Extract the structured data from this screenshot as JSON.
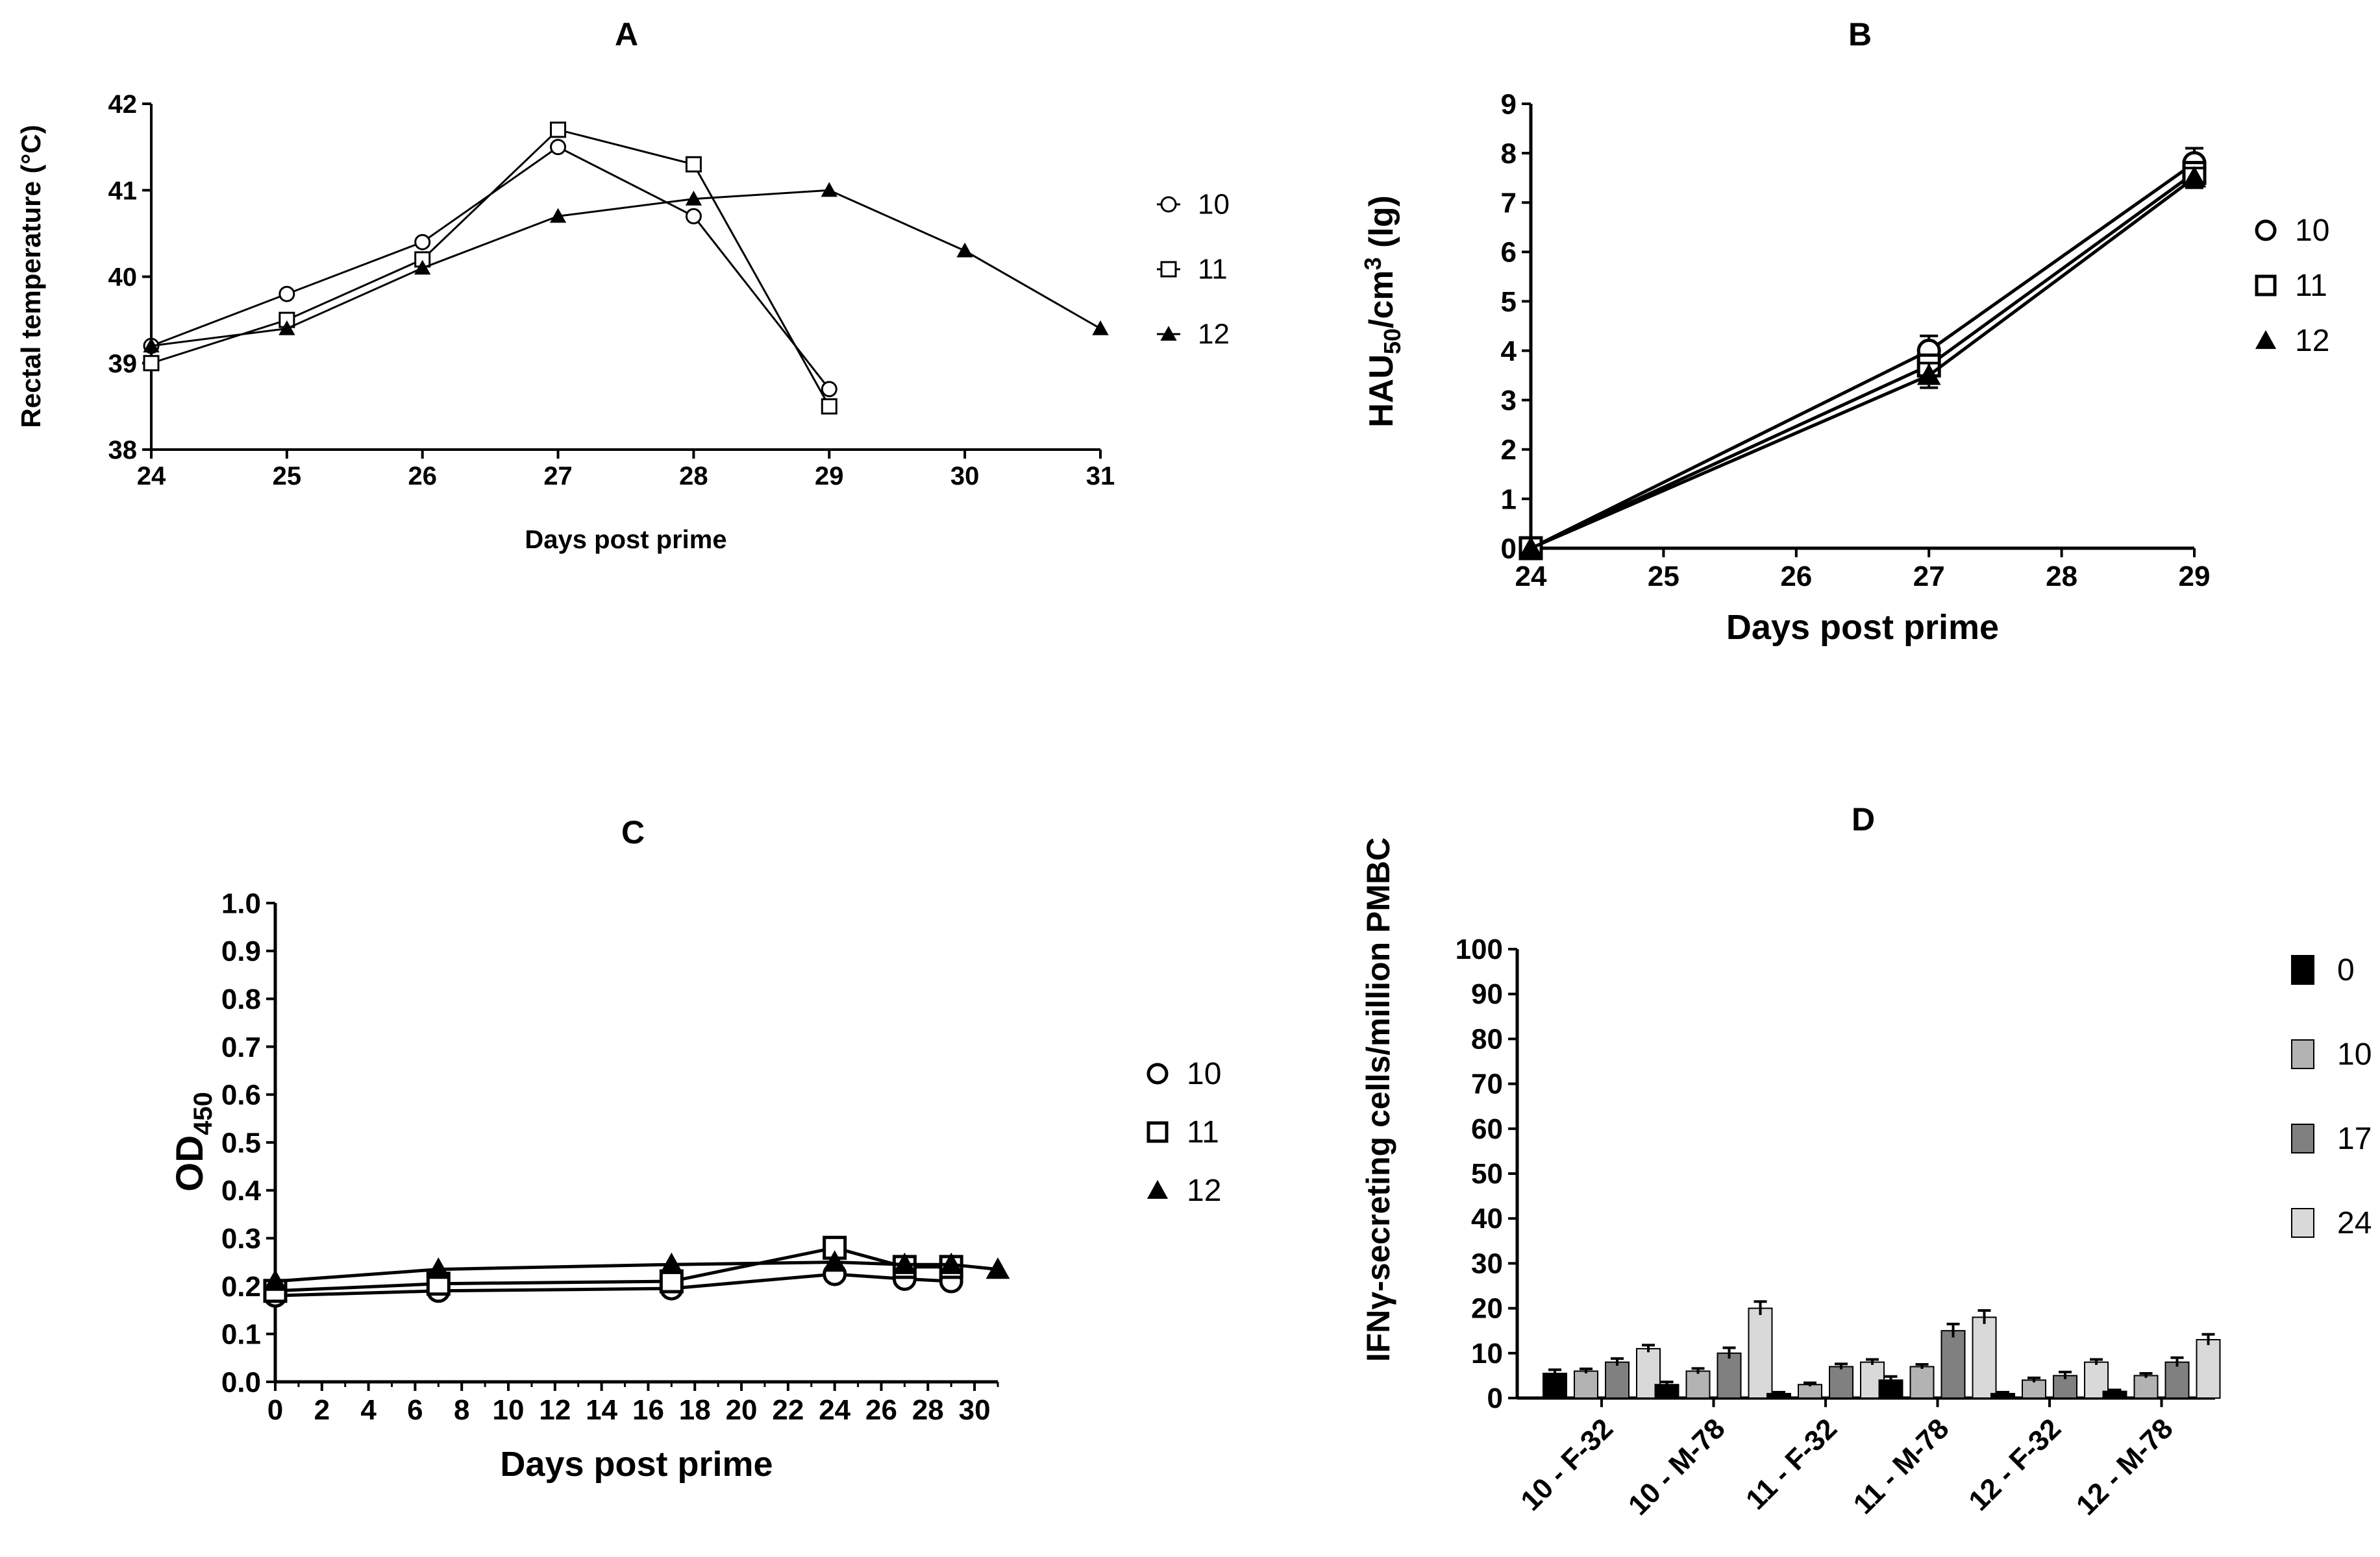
{
  "chart_data": [
    {
      "panel": "A",
      "type": "line",
      "title": "A",
      "xlabel": "Days post prime",
      "ylabel": "Rectal temperature (°C)",
      "xlim": [
        24,
        31
      ],
      "ylim": [
        38,
        42
      ],
      "xticks": [
        "24",
        "25",
        "26",
        "27",
        "28",
        "29",
        "30",
        "31"
      ],
      "yticks": [
        "38",
        "39",
        "40",
        "41",
        "42"
      ],
      "legend_position": "right",
      "series": [
        {
          "name": "10",
          "marker": "circle-open",
          "x": [
            24,
            25,
            26,
            27,
            28,
            29
          ],
          "y": [
            39.2,
            39.8,
            40.4,
            41.5,
            40.7,
            38.7
          ]
        },
        {
          "name": "11",
          "marker": "square-open",
          "x": [
            24,
            25,
            26,
            27,
            28,
            29
          ],
          "y": [
            39.0,
            39.5,
            40.2,
            41.7,
            41.3,
            38.5
          ]
        },
        {
          "name": "12",
          "marker": "triangle-filled",
          "x": [
            24,
            25,
            26,
            27,
            28,
            29,
            30,
            31
          ],
          "y": [
            39.2,
            39.4,
            40.1,
            40.7,
            40.9,
            41.0,
            40.3,
            39.4
          ]
        }
      ]
    },
    {
      "panel": "B",
      "type": "line",
      "title": "B",
      "xlabel": "Days post prime",
      "ylabel": "HAU50/cm3 (lg)",
      "xlim": [
        24,
        29
      ],
      "ylim": [
        0,
        9
      ],
      "xticks": [
        "24",
        "25",
        "26",
        "27",
        "28",
        "29"
      ],
      "yticks": [
        "0",
        "1",
        "2",
        "3",
        "4",
        "5",
        "6",
        "7",
        "8",
        "9"
      ],
      "legend_position": "right",
      "series": [
        {
          "name": "10",
          "marker": "circle-open",
          "x": [
            24,
            27,
            29
          ],
          "y": [
            0,
            4.0,
            7.8
          ],
          "err": [
            0,
            0.3,
            0.3
          ]
        },
        {
          "name": "11",
          "marker": "square-open",
          "x": [
            24,
            27,
            29
          ],
          "y": [
            0,
            3.7,
            7.6
          ],
          "err": [
            0,
            0.2,
            0.2
          ]
        },
        {
          "name": "12",
          "marker": "triangle-filled",
          "x": [
            24,
            27,
            29
          ],
          "y": [
            0,
            3.5,
            7.5
          ],
          "err": [
            0,
            0.25,
            0.2
          ]
        }
      ]
    },
    {
      "panel": "C",
      "type": "line",
      "title": "C",
      "xlabel": "Days post prime",
      "ylabel": "OD450",
      "xlim": [
        0,
        31
      ],
      "ylim": [
        0,
        1.0
      ],
      "xticks": [
        "0",
        "2",
        "4",
        "6",
        "8",
        "10",
        "12",
        "14",
        "16",
        "18",
        "20",
        "22",
        "24",
        "26",
        "28",
        "30"
      ],
      "yticks": [
        "0.0",
        "0.1",
        "0.2",
        "0.3",
        "0.4",
        "0.5",
        "0.6",
        "0.7",
        "0.8",
        "0.9",
        "1.0"
      ],
      "legend_position": "right",
      "series": [
        {
          "name": "10",
          "marker": "circle-open",
          "x": [
            0,
            7,
            17,
            24,
            27,
            29
          ],
          "y": [
            0.18,
            0.19,
            0.195,
            0.225,
            0.215,
            0.21
          ]
        },
        {
          "name": "11",
          "marker": "square-open",
          "x": [
            0,
            7,
            17,
            24,
            27,
            29
          ],
          "y": [
            0.19,
            0.205,
            0.21,
            0.28,
            0.24,
            0.24
          ]
        },
        {
          "name": "12",
          "marker": "triangle-filled",
          "x": [
            0,
            7,
            17,
            24,
            27,
            29,
            31
          ],
          "y": [
            0.21,
            0.235,
            0.245,
            0.25,
            0.245,
            0.245,
            0.235
          ]
        }
      ]
    },
    {
      "panel": "D",
      "type": "bar",
      "title": "D",
      "xlabel": "",
      "ylabel": "IFNγ-secreting cells/million PMBC",
      "ylim": [
        0,
        100
      ],
      "yticks": [
        "0",
        "10",
        "20",
        "30",
        "40",
        "50",
        "60",
        "70",
        "80",
        "90",
        "100"
      ],
      "categories": [
        "10 - F-32",
        "10 - M-78",
        "11 - F-32",
        "11 - M-78",
        "12 - F-32",
        "12 - M-78"
      ],
      "legend_position": "right",
      "series": [
        {
          "name": "0",
          "color": "#000000",
          "values": [
            5.5,
            3,
            1,
            4,
            1,
            1.5
          ],
          "err": [
            0.8,
            0.6,
            0.3,
            0.8,
            0.3,
            0.3
          ]
        },
        {
          "name": "10",
          "color": "#b3b3b3",
          "values": [
            6,
            6,
            3,
            7,
            4,
            5
          ],
          "err": [
            0.5,
            0.6,
            0.4,
            0.5,
            0.5,
            0.5
          ]
        },
        {
          "name": "17",
          "color": "#808080",
          "values": [
            8,
            10,
            7,
            15,
            5,
            8
          ],
          "err": [
            0.8,
            1.2,
            0.6,
            1.5,
            0.8,
            1.0
          ]
        },
        {
          "name": "24",
          "color": "#d9d9d9",
          "values": [
            11,
            20,
            8,
            18,
            8,
            13
          ],
          "err": [
            0.8,
            1.5,
            0.6,
            1.5,
            0.6,
            1.2
          ]
        }
      ]
    }
  ]
}
